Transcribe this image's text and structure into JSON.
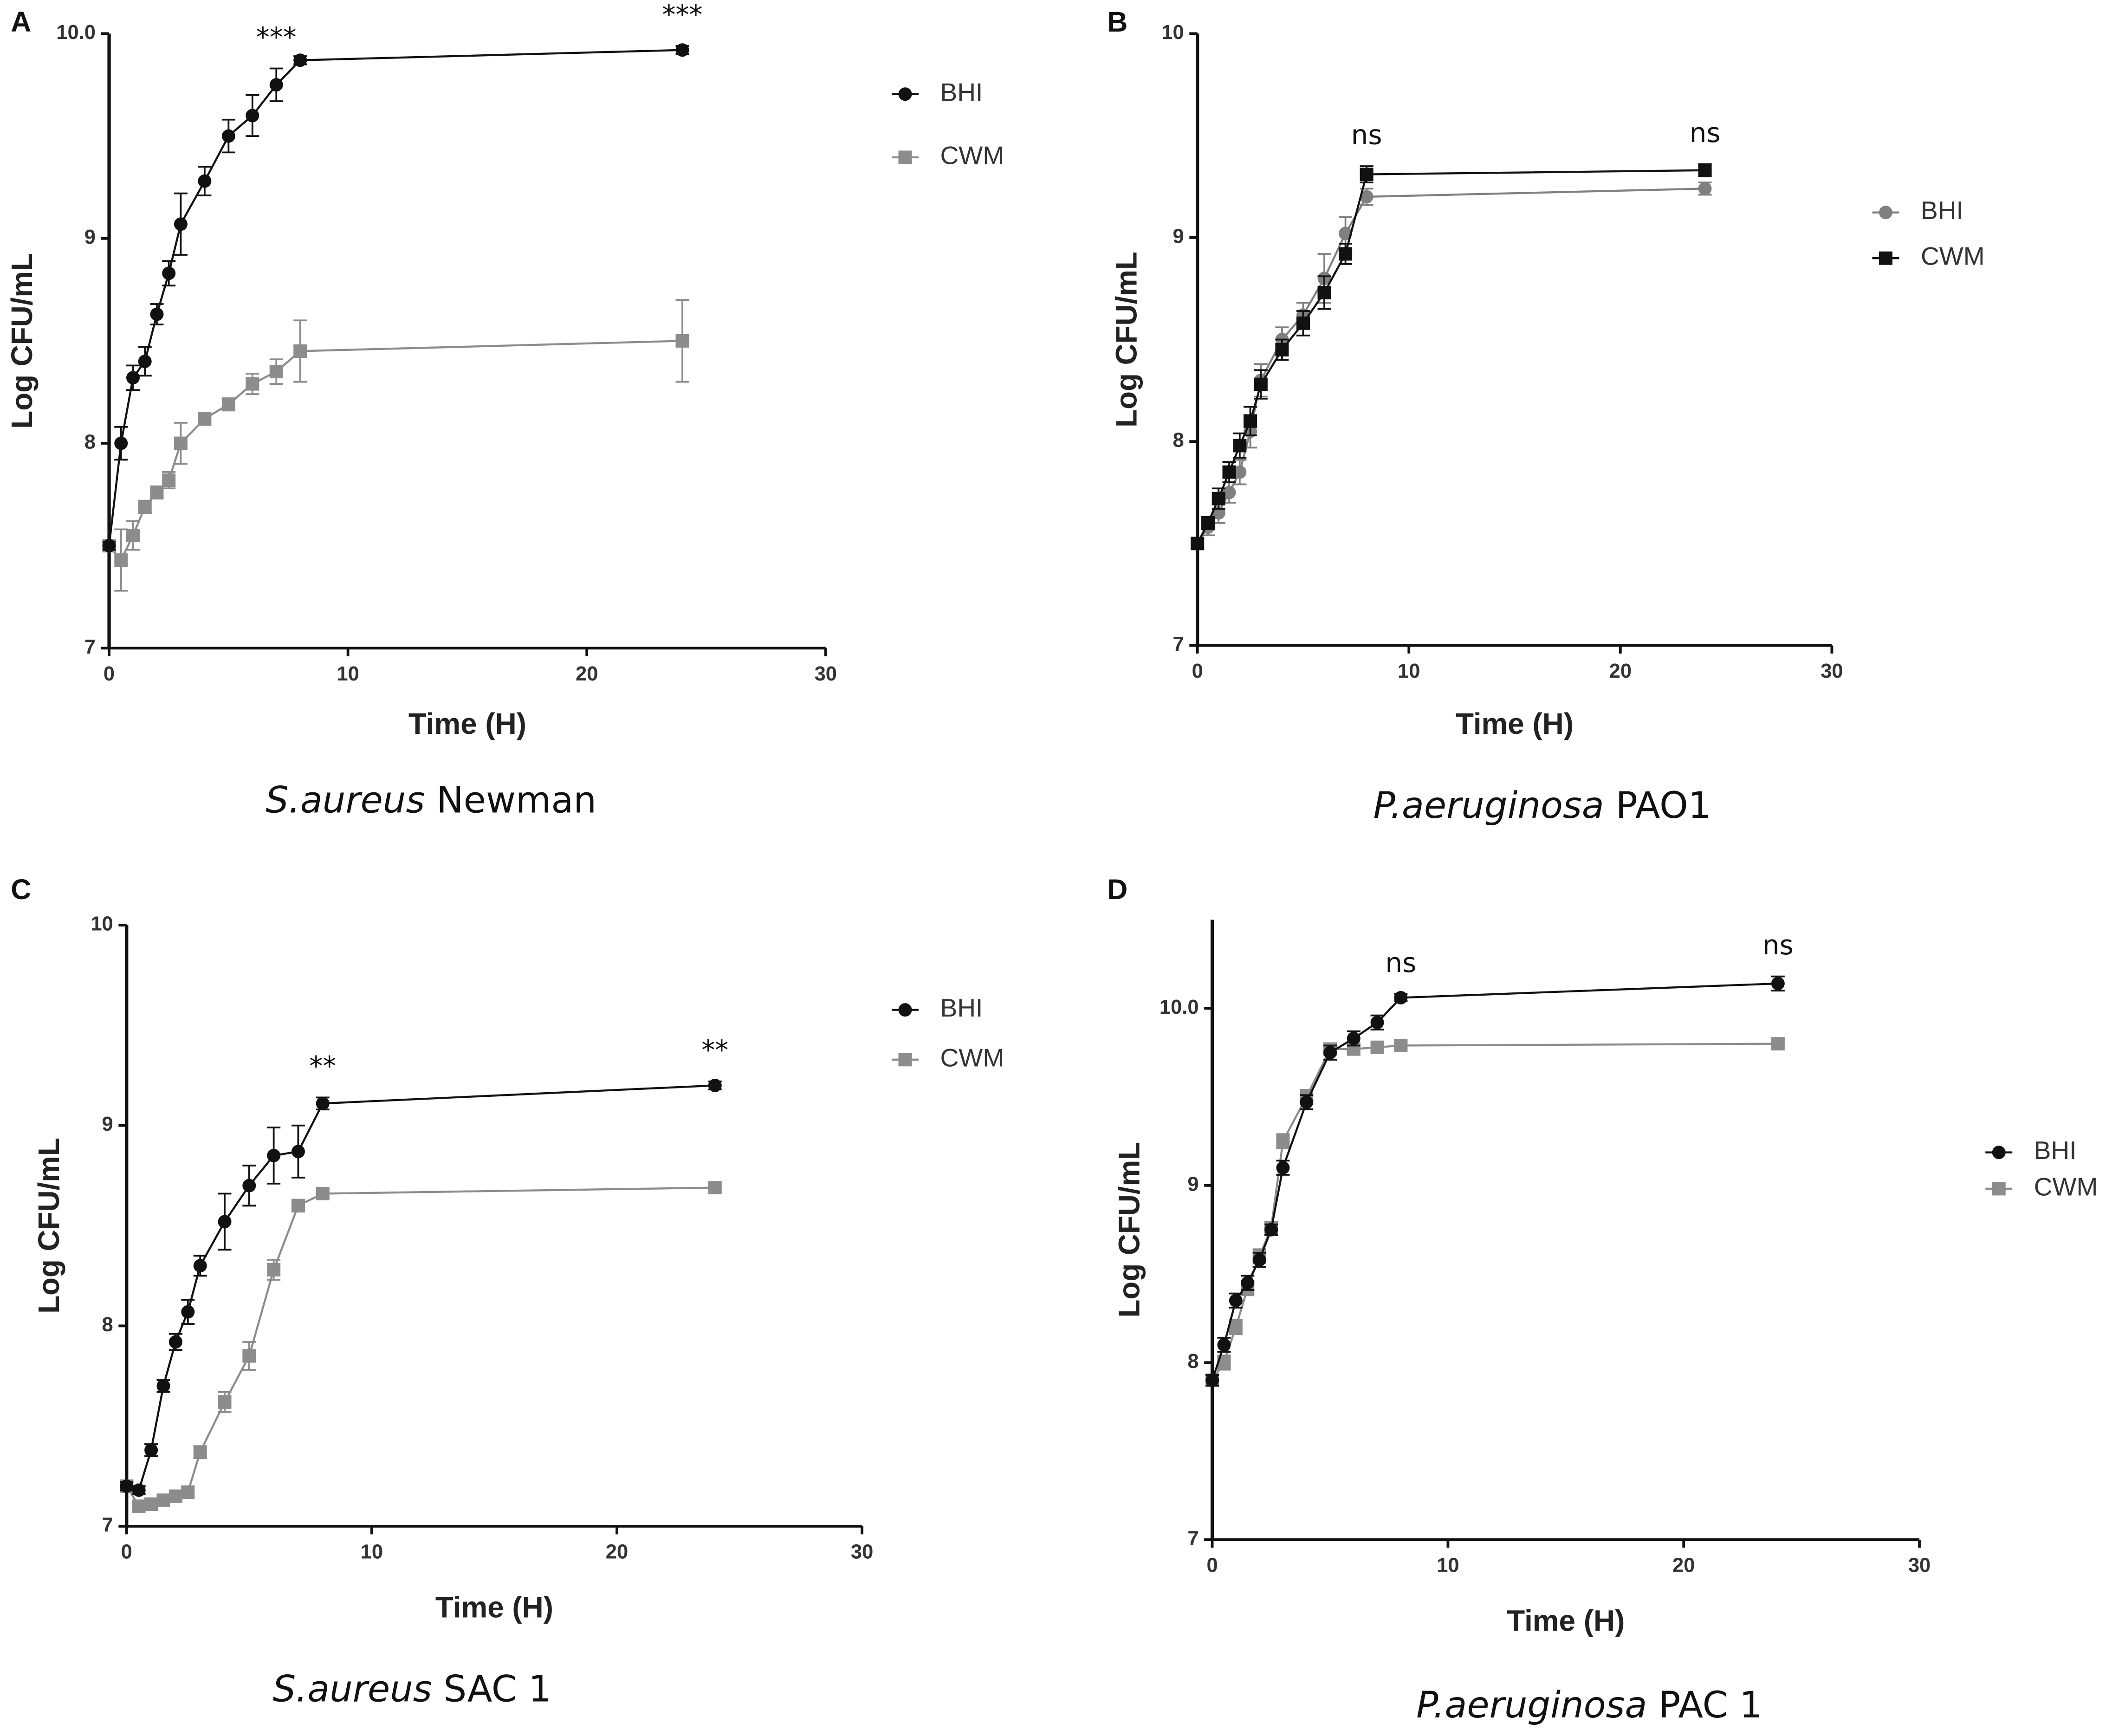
{
  "chart_data": [
    {
      "type": "line",
      "panel": "A",
      "caption": {
        "species": "S.aureus",
        "strain": " Newman"
      },
      "x_label": "Time (H)",
      "y_label": "Log CFU/mL",
      "x": [
        0,
        0.5,
        1,
        1.5,
        2,
        2.5,
        3,
        4,
        5,
        6,
        7,
        8,
        24
      ],
      "xlim": [
        0,
        30
      ],
      "xticks": [
        0,
        10,
        20,
        30
      ],
      "ylim": [
        7,
        10
      ],
      "yticks": [
        7,
        8,
        9,
        {
          "value": 10,
          "label": "10.0"
        }
      ],
      "series": [
        {
          "name": "BHI",
          "color": "#111111",
          "marker": "circle",
          "values": [
            7.5,
            8.0,
            8.32,
            8.4,
            8.63,
            8.83,
            9.07,
            9.28,
            9.5,
            9.6,
            9.75,
            9.87,
            9.92
          ],
          "errors": [
            0.02,
            0.08,
            0.06,
            0.07,
            0.05,
            0.06,
            0.15,
            0.07,
            0.08,
            0.1,
            0.08,
            0.02,
            0.02
          ]
        },
        {
          "name": "CWM",
          "color": "#8c8c8c",
          "marker": "square",
          "values": [
            7.5,
            7.43,
            7.55,
            7.69,
            7.76,
            7.82,
            8.0,
            8.12,
            8.19,
            8.29,
            8.35,
            8.45,
            8.5
          ],
          "errors": [
            0.02,
            0.15,
            0.07,
            0.03,
            0.03,
            0.04,
            0.1,
            0.03,
            0.03,
            0.05,
            0.06,
            0.15,
            0.2
          ]
        }
      ],
      "annotations": [
        {
          "text": "***",
          "x": 7
        },
        {
          "text": "***",
          "x": 24
        }
      ]
    },
    {
      "type": "line",
      "panel": "B",
      "caption": {
        "species": "P.aeruginosa",
        "strain": " PAO1"
      },
      "x_label": "Time (H)",
      "y_label": "Log CFU/mL",
      "x": [
        0,
        0.5,
        1,
        1.5,
        2,
        2.5,
        3,
        4,
        5,
        6,
        7,
        8,
        24
      ],
      "xlim": [
        0,
        30
      ],
      "xticks": [
        0,
        10,
        20,
        30
      ],
      "ylim": [
        7,
        10
      ],
      "yticks": [
        7,
        8,
        9,
        10
      ],
      "series": [
        {
          "name": "BHI",
          "color": "#808080",
          "marker": "circle",
          "values": [
            7.5,
            7.58,
            7.65,
            7.75,
            7.85,
            8.05,
            8.3,
            8.5,
            8.62,
            8.8,
            9.02,
            9.2,
            9.24
          ],
          "errors": [
            0.02,
            0.04,
            0.05,
            0.05,
            0.06,
            0.08,
            0.08,
            0.06,
            0.06,
            0.12,
            0.08,
            0.04,
            0.03
          ]
        },
        {
          "name": "CWM",
          "color": "#111111",
          "marker": "square",
          "values": [
            7.5,
            7.6,
            7.72,
            7.85,
            7.98,
            8.1,
            8.28,
            8.45,
            8.58,
            8.73,
            8.92,
            9.31,
            9.33
          ],
          "errors": [
            0.02,
            0.03,
            0.05,
            0.05,
            0.06,
            0.07,
            0.07,
            0.05,
            0.06,
            0.08,
            0.05,
            0.04,
            0.03
          ]
        }
      ],
      "annotations": [
        {
          "text": "ns",
          "x": 8
        },
        {
          "text": "ns",
          "x": 24
        }
      ]
    },
    {
      "type": "line",
      "panel": "C",
      "caption": {
        "species": "S.aureus",
        "strain": " SAC 1"
      },
      "x_label": "Time (H)",
      "y_label": "Log CFU/mL",
      "x": [
        0,
        0.5,
        1,
        1.5,
        2,
        2.5,
        3,
        4,
        5,
        6,
        7,
        8,
        24
      ],
      "xlim": [
        0,
        30
      ],
      "xticks": [
        0,
        10,
        20,
        30
      ],
      "ylim": [
        7,
        10
      ],
      "yticks": [
        7,
        8,
        9,
        10
      ],
      "series": [
        {
          "name": "BHI",
          "color": "#111111",
          "marker": "circle",
          "values": [
            7.2,
            7.18,
            7.38,
            7.7,
            7.92,
            8.07,
            8.3,
            8.52,
            8.7,
            8.85,
            8.87,
            9.11,
            9.2
          ],
          "errors": [
            0.02,
            0.02,
            0.03,
            0.03,
            0.04,
            0.06,
            0.05,
            0.14,
            0.1,
            0.14,
            0.13,
            0.03,
            0.02
          ]
        },
        {
          "name": "CWM",
          "color": "#8c8c8c",
          "marker": "square",
          "values": [
            7.2,
            7.1,
            7.11,
            7.13,
            7.15,
            7.17,
            7.37,
            7.62,
            7.85,
            8.28,
            8.6,
            8.66,
            8.69
          ],
          "errors": [
            0.02,
            0.02,
            0.02,
            0.02,
            0.02,
            0.02,
            0.03,
            0.05,
            0.07,
            0.05,
            0.03,
            0.02,
            0.02
          ]
        }
      ],
      "annotations": [
        {
          "text": "**",
          "x": 8
        },
        {
          "text": "**",
          "x": 24
        }
      ]
    },
    {
      "type": "line",
      "panel": "D",
      "caption": {
        "species": "P.aeruginosa",
        "strain": " PAC 1"
      },
      "x_label": "Time (H)",
      "y_label": "Log CFU/mL",
      "x": [
        0,
        0.5,
        1,
        1.5,
        2,
        2.5,
        3,
        4,
        5,
        6,
        7,
        8,
        24
      ],
      "xlim": [
        0,
        30
      ],
      "xticks": [
        0,
        10,
        20,
        30
      ],
      "ylim": [
        7,
        10.5
      ],
      "yticks": [
        7,
        8,
        9,
        {
          "value": 10,
          "label": "10.0"
        }
      ],
      "series": [
        {
          "name": "BHI",
          "color": "#111111",
          "marker": "circle",
          "values": [
            7.9,
            8.1,
            8.35,
            8.45,
            8.58,
            8.75,
            9.1,
            9.47,
            9.75,
            9.83,
            9.92,
            10.06,
            10.14
          ],
          "errors": [
            0.03,
            0.04,
            0.04,
            0.04,
            0.04,
            0.03,
            0.04,
            0.04,
            0.04,
            0.04,
            0.04,
            0.02,
            0.04
          ]
        },
        {
          "name": "CWM",
          "color": "#8c8c8c",
          "marker": "square",
          "values": [
            7.9,
            8.0,
            8.2,
            8.42,
            8.6,
            8.76,
            9.25,
            9.5,
            9.77,
            9.77,
            9.78,
            9.79,
            9.8
          ],
          "errors": [
            0.03,
            0.04,
            0.04,
            0.04,
            0.04,
            0.03,
            0.04,
            0.04,
            0.03,
            0.03,
            0.02,
            0.02,
            0.02
          ]
        }
      ],
      "annotations": [
        {
          "text": "ns",
          "x": 8
        },
        {
          "text": "ns",
          "x": 24
        }
      ]
    }
  ]
}
